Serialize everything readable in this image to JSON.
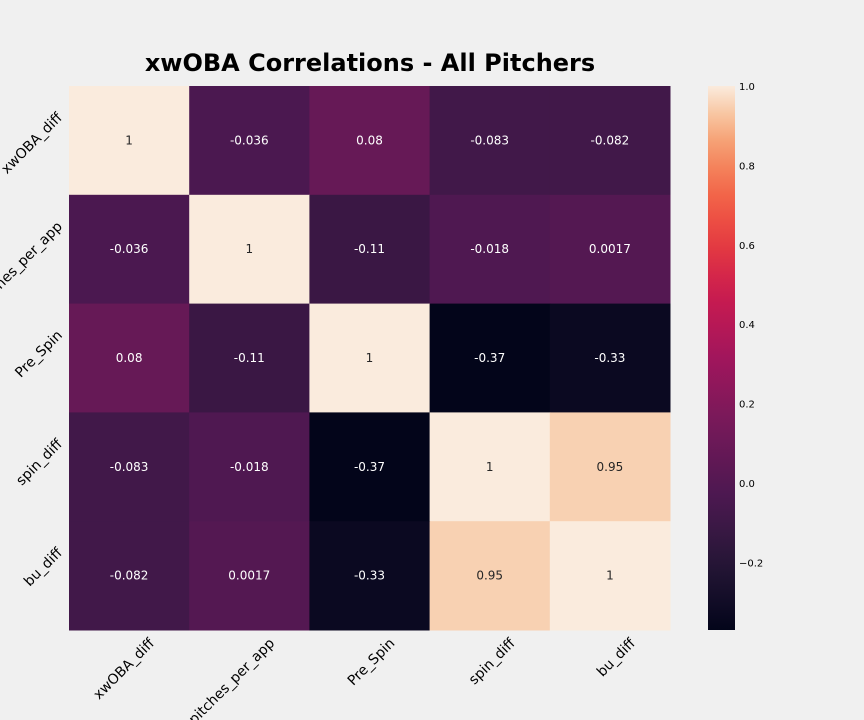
{
  "chart_data": {
    "type": "heatmap",
    "title": "xwOBA Correlations - All Pitchers",
    "x_labels": [
      "xwOBA_diff",
      "pitches_per_app",
      "Pre_Spin",
      "spin_diff",
      "bu_diff"
    ],
    "y_labels": [
      "xwOBA_diff",
      "pitches_per_app",
      "Pre_Spin",
      "spin_diff",
      "bu_diff"
    ],
    "values": [
      [
        1,
        -0.036,
        0.08,
        -0.083,
        -0.082
      ],
      [
        -0.036,
        1,
        -0.11,
        -0.018,
        0.0017
      ],
      [
        0.08,
        -0.11,
        1,
        -0.37,
        -0.33
      ],
      [
        -0.083,
        -0.018,
        -0.37,
        1,
        0.95
      ],
      [
        -0.082,
        0.0017,
        -0.33,
        0.95,
        1
      ]
    ],
    "cell_labels": [
      [
        "1",
        "-0.036",
        "0.08",
        "-0.083",
        "-0.082"
      ],
      [
        "-0.036",
        "1",
        "-0.11",
        "-0.018",
        "0.0017"
      ],
      [
        "0.08",
        "-0.11",
        "1",
        "-0.37",
        "-0.33"
      ],
      [
        "-0.083",
        "-0.018",
        "-0.37",
        "1",
        "0.95"
      ],
      [
        "-0.082",
        "0.0017",
        "-0.33",
        "0.95",
        "1"
      ]
    ],
    "colormap": "rocket",
    "vmin": -0.37,
    "vmax": 1.0,
    "colorbar_ticks": [
      1.0,
      0.8,
      0.6,
      0.4,
      0.2,
      0.0,
      -0.2
    ],
    "colorbar_tick_labels": [
      "1.0",
      "0.8",
      "0.6",
      "0.4",
      "0.2",
      "0.0",
      "−0.2"
    ],
    "grid": false
  }
}
